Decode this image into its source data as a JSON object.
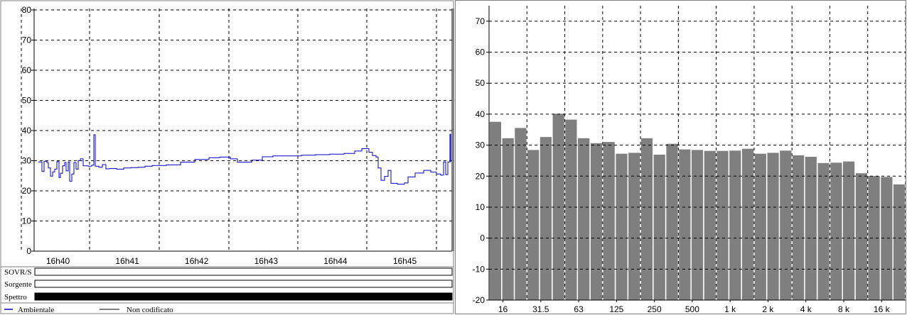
{
  "chart_data": [
    {
      "type": "line",
      "ylim": [
        0,
        80
      ],
      "yticks": [
        0,
        10,
        20,
        30,
        40,
        50,
        60,
        70,
        80
      ],
      "xlim_minutes": [
        0,
        6.1
      ],
      "xticks": [
        "16h40",
        "16h41",
        "16h42",
        "16h43",
        "16h44",
        "16h45"
      ],
      "grid": true,
      "series": [
        {
          "name": "Ambientale",
          "color": "#0000cc",
          "points": [
            [
              0.0,
              29.6
            ],
            [
              0.05,
              26.4
            ],
            [
              0.08,
              29.8
            ],
            [
              0.12,
              29.4
            ],
            [
              0.14,
              27.6
            ],
            [
              0.17,
              24.9
            ],
            [
              0.2,
              26.3
            ],
            [
              0.23,
              27.2
            ],
            [
              0.26,
              29.7
            ],
            [
              0.29,
              24.4
            ],
            [
              0.31,
              25.8
            ],
            [
              0.34,
              28.3
            ],
            [
              0.37,
              29.4
            ],
            [
              0.39,
              26.6
            ],
            [
              0.42,
              29.6
            ],
            [
              0.44,
              23.2
            ],
            [
              0.47,
              25.6
            ],
            [
              0.5,
              29.4
            ],
            [
              0.53,
              27.2
            ],
            [
              0.56,
              30.0
            ],
            [
              0.59,
              30.6
            ],
            [
              0.63,
              28.3
            ],
            [
              0.7,
              28.2
            ],
            [
              0.75,
              28.5
            ],
            [
              0.78,
              38.6
            ],
            [
              0.8,
              28.2
            ],
            [
              0.85,
              27.8
            ],
            [
              0.9,
              28.7
            ],
            [
              0.95,
              27.3
            ],
            [
              1.0,
              27.4
            ],
            [
              1.1,
              27.2
            ],
            [
              1.2,
              27.6
            ],
            [
              1.3,
              27.7
            ],
            [
              1.4,
              27.8
            ],
            [
              1.5,
              28.2
            ],
            [
              1.6,
              28.4
            ],
            [
              1.8,
              28.6
            ],
            [
              2.0,
              29.5
            ],
            [
              2.2,
              30.4
            ],
            [
              2.4,
              31.0
            ],
            [
              2.55,
              31.2
            ],
            [
              2.7,
              30.6
            ],
            [
              2.8,
              29.5
            ],
            [
              2.9,
              29.5
            ],
            [
              3.0,
              30.2
            ],
            [
              3.15,
              31.3
            ],
            [
              3.3,
              31.6
            ],
            [
              3.5,
              31.6
            ],
            [
              3.7,
              31.8
            ],
            [
              3.9,
              32.0
            ],
            [
              4.1,
              32.2
            ],
            [
              4.3,
              32.4
            ],
            [
              4.45,
              33.2
            ],
            [
              4.55,
              34.0
            ],
            [
              4.65,
              32.8
            ],
            [
              4.7,
              31.7
            ],
            [
              4.75,
              31.2
            ],
            [
              4.78,
              27.6
            ],
            [
              4.82,
              23.5
            ],
            [
              4.87,
              24.8
            ],
            [
              4.92,
              26.8
            ],
            [
              4.96,
              22.5
            ],
            [
              5.05,
              22.2
            ],
            [
              5.15,
              22.6
            ],
            [
              5.2,
              24.6
            ],
            [
              5.3,
              25.9
            ],
            [
              5.42,
              26.8
            ],
            [
              5.52,
              26.2
            ],
            [
              5.6,
              25.6
            ],
            [
              5.66,
              25.2
            ],
            [
              5.7,
              29.6
            ],
            [
              5.73,
              25.4
            ],
            [
              5.76,
              29.6
            ],
            [
              5.79,
              38.8
            ],
            [
              5.8,
              29.6
            ]
          ]
        },
        {
          "name": "Non codificato",
          "color": "#000000"
        }
      ],
      "tracks": [
        {
          "label": "SOVR/S",
          "filled": false
        },
        {
          "label": "Sorgente",
          "filled": false
        },
        {
          "label": "Spettro",
          "filled": true
        }
      ]
    },
    {
      "type": "bar",
      "ylim": [
        -20,
        75
      ],
      "yticks": [
        -20,
        -10,
        0,
        10,
        20,
        30,
        40,
        50,
        60,
        70
      ],
      "xticks": [
        "16",
        "31.5",
        "63",
        "125",
        "250",
        "500",
        "1 k",
        "2 k",
        "4 k",
        "8 k",
        "16 k"
      ],
      "grid": true,
      "bar_color": "#7f7f7f",
      "values": [
        37.6,
        32.3,
        35.6,
        28.5,
        32.7,
        40.2,
        38.3,
        32.3,
        30.7,
        31.1,
        27.3,
        27.6,
        32.3,
        27.0,
        30.5,
        28.7,
        28.5,
        28.2,
        28.2,
        28.3,
        28.9,
        27.3,
        27.6,
        28.3,
        26.8,
        26.3,
        24.3,
        24.4,
        24.8,
        21.0,
        20.1,
        19.8,
        17.4
      ]
    }
  ]
}
